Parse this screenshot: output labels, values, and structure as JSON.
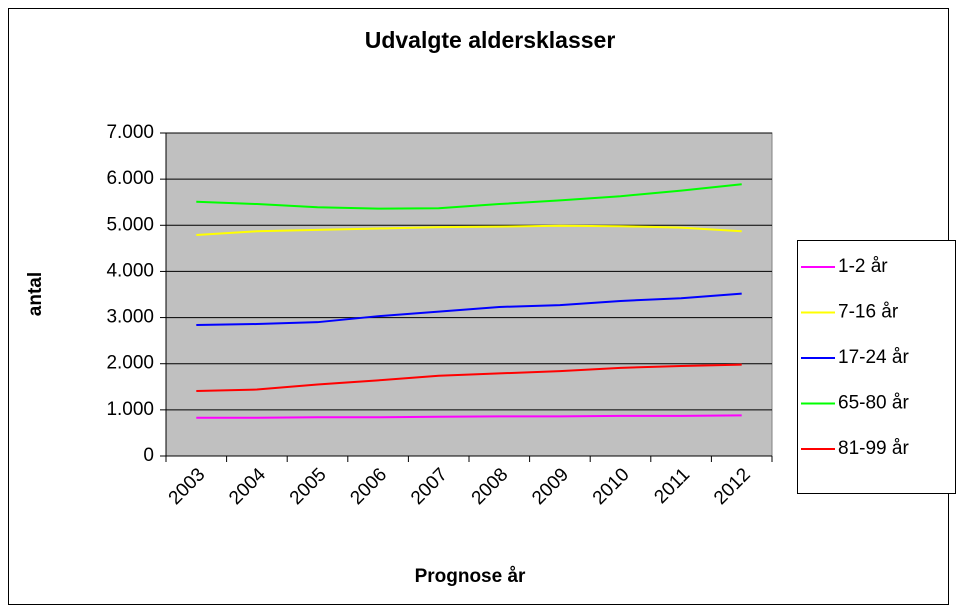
{
  "chart_data": {
    "type": "line",
    "title": "Udvalgte aldersklasser",
    "x_label": "Prognose år",
    "y_label": "antal",
    "categories": [
      "2003",
      "2004",
      "2005",
      "2006",
      "2007",
      "2008",
      "2009",
      "2010",
      "2011",
      "2012"
    ],
    "series": [
      {
        "name": "1-2 år",
        "color": "#ff00ff",
        "values": [
          830,
          830,
          840,
          840,
          850,
          860,
          860,
          870,
          870,
          880
        ]
      },
      {
        "name": "7-16 år",
        "color": "#ffff00",
        "values": [
          4790,
          4870,
          4900,
          4930,
          4960,
          4970,
          4990,
          4980,
          4950,
          4870
        ]
      },
      {
        "name": "17-24 år",
        "color": "#0000ff",
        "values": [
          2840,
          2860,
          2900,
          3030,
          3130,
          3230,
          3270,
          3360,
          3420,
          3520
        ]
      },
      {
        "name": "65-80 år",
        "color": "#00ff00",
        "values": [
          5510,
          5460,
          5390,
          5360,
          5370,
          5460,
          5540,
          5630,
          5750,
          5890
        ]
      },
      {
        "name": "81-99 år",
        "color": "#ff0000",
        "values": [
          1410,
          1440,
          1550,
          1640,
          1740,
          1790,
          1840,
          1910,
          1950,
          1980
        ]
      }
    ],
    "ylim": [
      0,
      7000
    ],
    "yticks": [
      0,
      {
        "value": 1000,
        "label": "1.000"
      },
      {
        "value": 2000,
        "label": "2.000"
      },
      {
        "value": 3000,
        "label": "3.000"
      },
      {
        "value": 4000,
        "label": "4.000"
      },
      {
        "value": 5000,
        "label": "5.000"
      },
      {
        "value": 6000,
        "label": "6.000"
      },
      {
        "value": 7000,
        "label": "7.000"
      }
    ],
    "grid": true,
    "legend": "right"
  }
}
